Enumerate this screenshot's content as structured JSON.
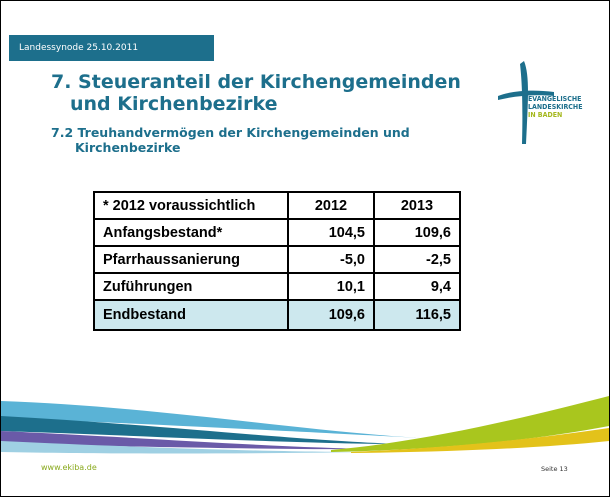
{
  "header": {
    "session": "Landessynode 25.10.2011",
    "title": [
      "7. Steueranteil der Kirchengemeinden",
      "und Kirchenbezirke"
    ],
    "subtitle": [
      "7.2 Treuhandvermögen der Kirchengemeinden und",
      "Kirchenbezirke"
    ]
  },
  "logo": [
    "EVANGELISCHE",
    "LANDESKIRCHE",
    "IN BADEN"
  ],
  "table": {
    "columns": [
      "* 2012 voraussichtlich",
      "2012",
      "2013"
    ],
    "rows": [
      [
        "Anfangsbestand*",
        "104,5",
        "109,6"
      ],
      [
        "Pfarrhaussanierung",
        "-5,0",
        "-2,5"
      ],
      [
        "Zuführungen",
        "10,1",
        "9,4"
      ],
      [
        "Endbestand",
        "109,6",
        "116,5"
      ]
    ]
  },
  "footer": {
    "url": "www.ekiba.de",
    "page": "Seite 13"
  }
}
